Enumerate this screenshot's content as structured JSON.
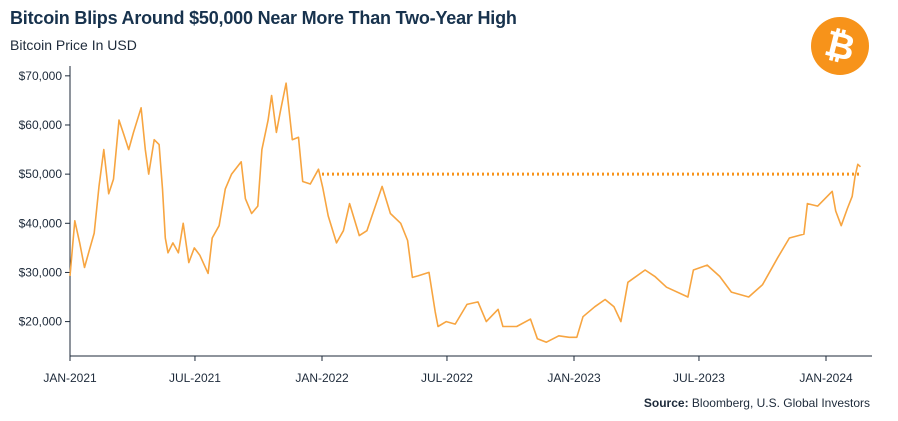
{
  "header": {
    "title": "Bitcoin Blips Around $50,000 Near More Than Two-Year High",
    "subtitle": "Bitcoin Price In USD"
  },
  "logo": {
    "icon": "bitcoin-logo-icon",
    "color": "#f7931a"
  },
  "source": {
    "label": "Source:",
    "text": "Bloomberg, U.S. Global Investors"
  },
  "chart_data": {
    "type": "line",
    "title": "Bitcoin Blips Around $50,000 Near More Than Two-Year High",
    "subtitle": "Bitcoin Price In USD",
    "xlabel": "",
    "ylabel": "",
    "x_range": [
      "2021-01-01",
      "2024-02-20"
    ],
    "ylim": [
      13000,
      72000
    ],
    "y_ticks": [
      20000,
      30000,
      40000,
      50000,
      60000,
      70000
    ],
    "y_tick_labels": [
      "$20,000",
      "$30,000",
      "$40,000",
      "$50,000",
      "$60,000",
      "$70,000"
    ],
    "x_ticks": [
      "2021-01-01",
      "2021-07-01",
      "2022-01-01",
      "2022-07-01",
      "2023-01-01",
      "2023-07-01",
      "2024-01-01"
    ],
    "x_tick_labels": [
      "JAN-2021",
      "JUL-2021",
      "JAN-2022",
      "JUL-2022",
      "JAN-2023",
      "JUL-2023",
      "JAN-2024"
    ],
    "grid": false,
    "line_color": "#f7a541",
    "reference_line": {
      "y": 50000,
      "x_start": "2022-01-01",
      "x_end": "2024-02-20",
      "style": "dotted",
      "color": "#f7931a"
    },
    "series": [
      {
        "values": [
          [
            "2021-01-01",
            29300
          ],
          [
            "2021-01-08",
            40500
          ],
          [
            "2021-01-15",
            36000
          ],
          [
            "2021-01-22",
            31000
          ],
          [
            "2021-01-29",
            34500
          ],
          [
            "2021-02-05",
            38000
          ],
          [
            "2021-02-12",
            47500
          ],
          [
            "2021-02-19",
            55000
          ],
          [
            "2021-02-26",
            46000
          ],
          [
            "2021-03-05",
            49000
          ],
          [
            "2021-03-13",
            61000
          ],
          [
            "2021-03-20",
            58000
          ],
          [
            "2021-03-27",
            55000
          ],
          [
            "2021-04-03",
            58500
          ],
          [
            "2021-04-14",
            63500
          ],
          [
            "2021-04-20",
            55000
          ],
          [
            "2021-04-25",
            50000
          ],
          [
            "2021-05-03",
            57000
          ],
          [
            "2021-05-10",
            56000
          ],
          [
            "2021-05-15",
            47000
          ],
          [
            "2021-05-19",
            37000
          ],
          [
            "2021-05-23",
            34000
          ],
          [
            "2021-05-30",
            36000
          ],
          [
            "2021-06-07",
            34000
          ],
          [
            "2021-06-14",
            40000
          ],
          [
            "2021-06-22",
            32000
          ],
          [
            "2021-06-30",
            35000
          ],
          [
            "2021-07-08",
            33500
          ],
          [
            "2021-07-20",
            29800
          ],
          [
            "2021-07-26",
            37000
          ],
          [
            "2021-08-05",
            39500
          ],
          [
            "2021-08-14",
            47000
          ],
          [
            "2021-08-23",
            50000
          ],
          [
            "2021-09-06",
            52500
          ],
          [
            "2021-09-12",
            45000
          ],
          [
            "2021-09-21",
            42000
          ],
          [
            "2021-09-30",
            43500
          ],
          [
            "2021-10-06",
            55000
          ],
          [
            "2021-10-15",
            61000
          ],
          [
            "2021-10-20",
            66000
          ],
          [
            "2021-10-27",
            58500
          ],
          [
            "2021-11-02",
            63000
          ],
          [
            "2021-11-10",
            68500
          ],
          [
            "2021-11-19",
            57000
          ],
          [
            "2021-11-28",
            57500
          ],
          [
            "2021-12-04",
            48500
          ],
          [
            "2021-12-15",
            48000
          ],
          [
            "2021-12-27",
            51000
          ],
          [
            "2022-01-02",
            47300
          ],
          [
            "2022-01-10",
            41500
          ],
          [
            "2022-01-22",
            36000
          ],
          [
            "2022-02-01",
            38500
          ],
          [
            "2022-02-10",
            44000
          ],
          [
            "2022-02-24",
            37500
          ],
          [
            "2022-03-07",
            38500
          ],
          [
            "2022-03-29",
            47500
          ],
          [
            "2022-04-10",
            42000
          ],
          [
            "2022-04-25",
            40000
          ],
          [
            "2022-05-05",
            36500
          ],
          [
            "2022-05-12",
            29000
          ],
          [
            "2022-05-20",
            29300
          ],
          [
            "2022-06-05",
            30000
          ],
          [
            "2022-06-14",
            22000
          ],
          [
            "2022-06-18",
            19000
          ],
          [
            "2022-06-30",
            20000
          ],
          [
            "2022-07-13",
            19500
          ],
          [
            "2022-07-30",
            23500
          ],
          [
            "2022-08-15",
            24000
          ],
          [
            "2022-08-27",
            20000
          ],
          [
            "2022-09-13",
            22500
          ],
          [
            "2022-09-20",
            19000
          ],
          [
            "2022-10-10",
            19000
          ],
          [
            "2022-10-30",
            20500
          ],
          [
            "2022-11-09",
            16500
          ],
          [
            "2022-11-22",
            15800
          ],
          [
            "2022-12-10",
            17100
          ],
          [
            "2022-12-25",
            16800
          ],
          [
            "2023-01-05",
            16800
          ],
          [
            "2023-01-14",
            21000
          ],
          [
            "2023-01-31",
            23000
          ],
          [
            "2023-02-15",
            24500
          ],
          [
            "2023-02-28",
            23000
          ],
          [
            "2023-03-10",
            20000
          ],
          [
            "2023-03-20",
            28000
          ],
          [
            "2023-04-14",
            30500
          ],
          [
            "2023-04-28",
            29200
          ],
          [
            "2023-05-15",
            27000
          ],
          [
            "2023-06-15",
            25000
          ],
          [
            "2023-06-23",
            30500
          ],
          [
            "2023-07-13",
            31500
          ],
          [
            "2023-07-31",
            29200
          ],
          [
            "2023-08-17",
            26000
          ],
          [
            "2023-09-11",
            25000
          ],
          [
            "2023-10-01",
            27500
          ],
          [
            "2023-10-23",
            33000
          ],
          [
            "2023-11-09",
            37000
          ],
          [
            "2023-11-30",
            37800
          ],
          [
            "2023-12-05",
            44000
          ],
          [
            "2023-12-20",
            43500
          ],
          [
            "2024-01-10",
            46500
          ],
          [
            "2024-01-15",
            42500
          ],
          [
            "2024-01-23",
            39500
          ],
          [
            "2024-02-01",
            43000
          ],
          [
            "2024-02-08",
            45500
          ],
          [
            "2024-02-12",
            49500
          ],
          [
            "2024-02-16",
            52000
          ],
          [
            "2024-02-20",
            51500
          ]
        ]
      }
    ]
  }
}
